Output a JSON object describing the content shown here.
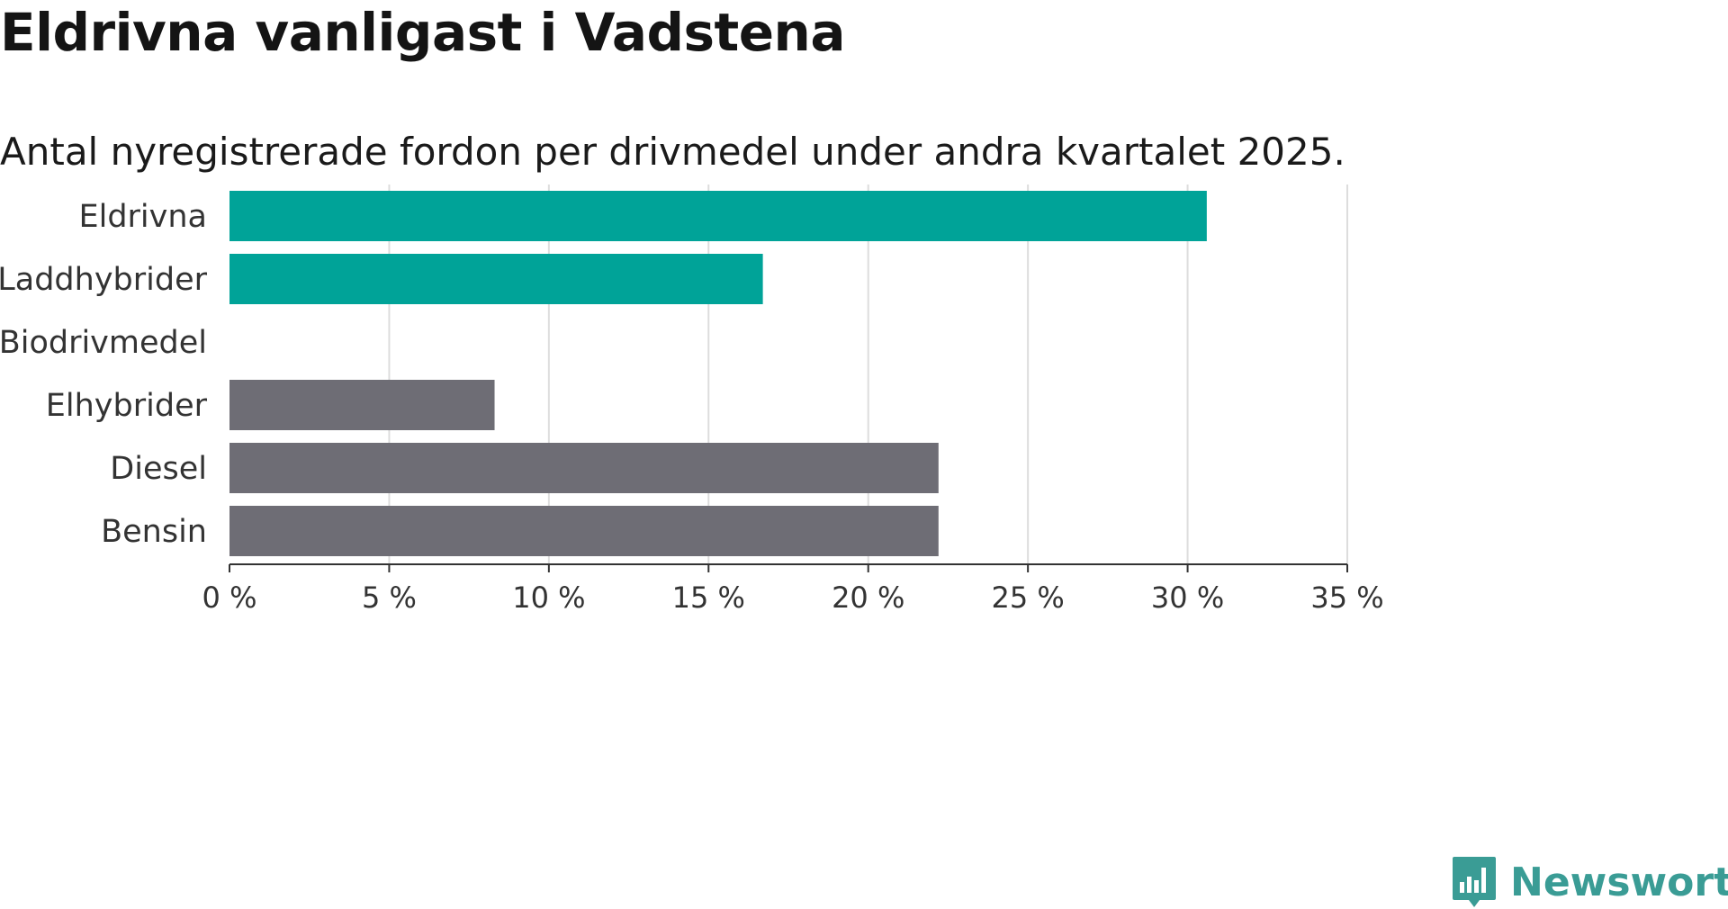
{
  "header": {
    "title": "Eldrivna vanligast i Vadstena",
    "subtitle": "Antal nyregistrerade fordon per drivmedel under andra kvartalet 2025."
  },
  "brand": {
    "name": "Newsworthy",
    "color": "#3a9c95",
    "icon": "newsworthy-logo-icon"
  },
  "colors": {
    "highlight": "#00a398",
    "default": "#6e6d75",
    "grid": "#dddddd",
    "axis": "#333333"
  },
  "chart_data": {
    "type": "bar",
    "orientation": "horizontal",
    "title": "Eldrivna vanligast i Vadstena",
    "subtitle": "Antal nyregistrerade fordon per drivmedel under andra kvartalet 2025.",
    "categories": [
      "Eldrivna",
      "Laddhybrider",
      "Biodrivmedel",
      "Elhybrider",
      "Diesel",
      "Bensin"
    ],
    "values": [
      30.6,
      16.7,
      0,
      8.3,
      22.2,
      22.2
    ],
    "bar_colors": [
      "#00a398",
      "#00a398",
      "#6e6d75",
      "#6e6d75",
      "#6e6d75",
      "#6e6d75"
    ],
    "unit": "%",
    "xlim": [
      0,
      35
    ],
    "xticks": [
      0,
      5,
      10,
      15,
      20,
      25,
      30,
      35
    ],
    "xtick_labels": [
      "0 %",
      "5 %",
      "10 %",
      "15 %",
      "20 %",
      "25 %",
      "30 %",
      "35 %"
    ],
    "xlabel": "",
    "ylabel": "",
    "grid": true
  }
}
